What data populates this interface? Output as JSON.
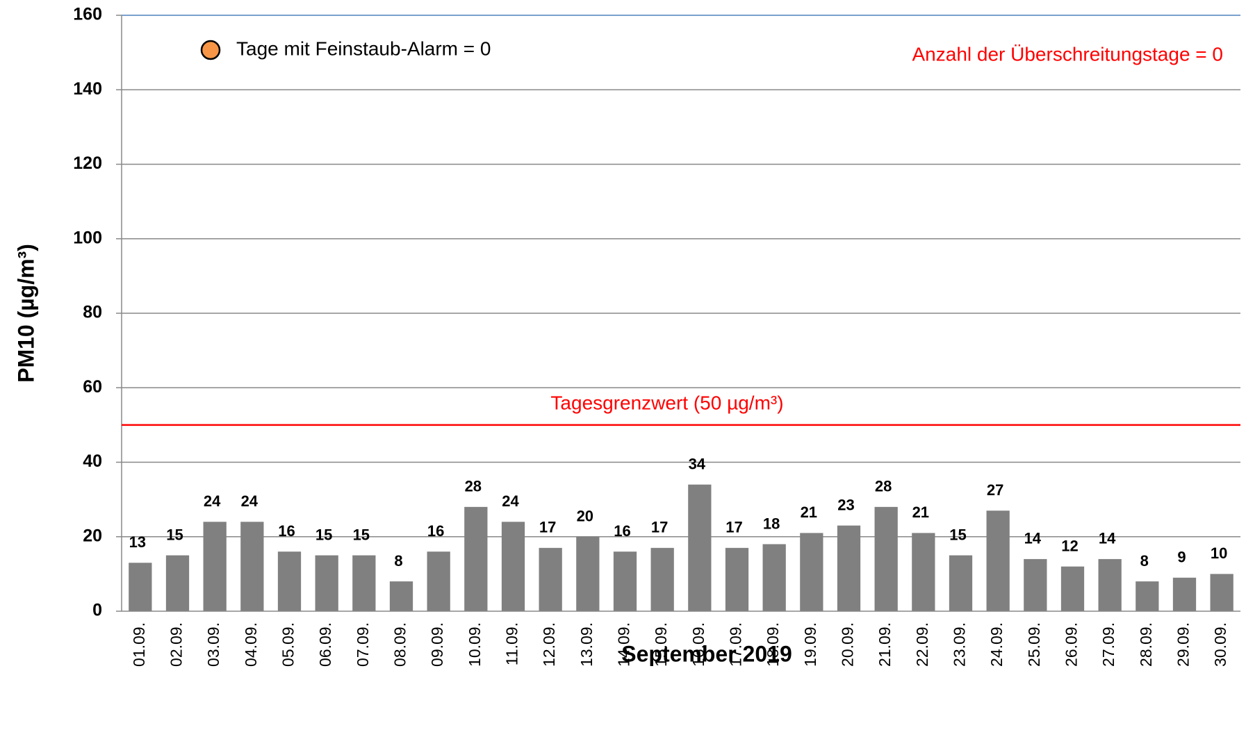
{
  "chart_data": {
    "type": "bar",
    "y_axis_label": "PM10 (µg/m³)",
    "x_axis_label": "September 2019",
    "categories": [
      "01.09.",
      "02.09.",
      "03.09.",
      "04.09.",
      "05.09.",
      "06.09.",
      "07.09.",
      "08.09.",
      "09.09.",
      "10.09.",
      "11.09.",
      "12.09.",
      "13.09.",
      "14.09.",
      "15.09.",
      "16.09.",
      "17.09.",
      "18.09.",
      "19.09.",
      "20.09.",
      "21.09.",
      "22.09.",
      "23.09.",
      "24.09.",
      "25.09.",
      "26.09.",
      "27.09.",
      "28.09.",
      "29.09.",
      "30.09."
    ],
    "values": [
      13,
      15,
      24,
      24,
      16,
      15,
      15,
      8,
      16,
      28,
      24,
      17,
      20,
      16,
      17,
      34,
      17,
      18,
      21,
      23,
      28,
      21,
      15,
      27,
      14,
      12,
      14,
      8,
      9,
      10
    ],
    "color": "#808080",
    "ylim": [
      0,
      160
    ],
    "yticks": [
      0,
      20,
      40,
      60,
      80,
      100,
      120,
      140,
      160
    ],
    "grid": true,
    "threshold": 50,
    "threshold_color": "#ff0000",
    "threshold_label": "Tagesgrenzwert (50 µg/m³)",
    "alarm_label": "Tage mit Feinstaub-Alarm = 0",
    "alarm_marker_color": "#f79646",
    "exceedance_label": "Anzahl der Überschreitungstage = 0"
  }
}
